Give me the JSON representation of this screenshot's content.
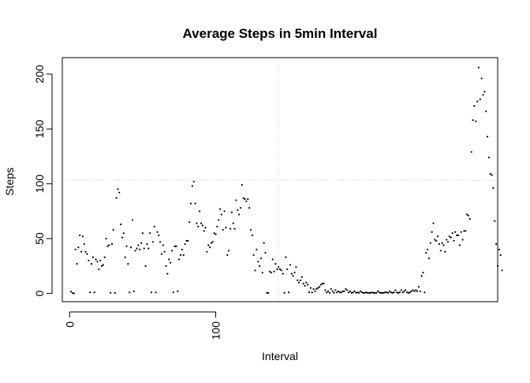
{
  "chart_data": {
    "type": "scatter",
    "title": "Average Steps in 5min Interval",
    "xlabel": "Interval",
    "ylabel": "Steps",
    "xlim": [
      -5,
      293
    ],
    "ylim": [
      -7.5,
      215
    ],
    "x_ticks": [
      0,
      100
    ],
    "x_tick_labels": [
      "0",
      "100"
    ],
    "y_ticks": [
      0,
      50,
      100,
      150,
      200
    ],
    "y_tick_labels": [
      "0",
      "50",
      "100",
      "150",
      "200"
    ],
    "grid": "dotted reference lines at x=143 and y=103",
    "ref_lines": {
      "x": 143,
      "y": 103
    },
    "point_color": "#000000",
    "points": [
      [
        1,
        1.7
      ],
      [
        2,
        0.3
      ],
      [
        3,
        0.1
      ],
      [
        4,
        40
      ],
      [
        5,
        27
      ],
      [
        6,
        42
      ],
      [
        7,
        53
      ],
      [
        8,
        38
      ],
      [
        9,
        52
      ],
      [
        10,
        45
      ],
      [
        11,
        38
      ],
      [
        12,
        36
      ],
      [
        13,
        30
      ],
      [
        14,
        1
      ],
      [
        15,
        27
      ],
      [
        16,
        33
      ],
      [
        17,
        1
      ],
      [
        18,
        31
      ],
      [
        19,
        29
      ],
      [
        20,
        22
      ],
      [
        21,
        30
      ],
      [
        22,
        25
      ],
      [
        23,
        26
      ],
      [
        24,
        33
      ],
      [
        25,
        50
      ],
      [
        26,
        43
      ],
      [
        27,
        44
      ],
      [
        28,
        0.5
      ],
      [
        29,
        45
      ],
      [
        30,
        58
      ],
      [
        31,
        0.5
      ],
      [
        32,
        87
      ],
      [
        33,
        95
      ],
      [
        34,
        92
      ],
      [
        35,
        63
      ],
      [
        36,
        51
      ],
      [
        37,
        55
      ],
      [
        38,
        33
      ],
      [
        39,
        43
      ],
      [
        40,
        27
      ],
      [
        41,
        1
      ],
      [
        42,
        42
      ],
      [
        43,
        67
      ],
      [
        44,
        2
      ],
      [
        45,
        39
      ],
      [
        46,
        41
      ],
      [
        47,
        44
      ],
      [
        48,
        40
      ],
      [
        49,
        46
      ],
      [
        50,
        55
      ],
      [
        51,
        41
      ],
      [
        52,
        25
      ],
      [
        53,
        45
      ],
      [
        54,
        41
      ],
      [
        55,
        55
      ],
      [
        56,
        1
      ],
      [
        57,
        47
      ],
      [
        58,
        61
      ],
      [
        59,
        1
      ],
      [
        60,
        56
      ],
      [
        61,
        53
      ],
      [
        62,
        47
      ],
      [
        63,
        36
      ],
      [
        64,
        44
      ],
      [
        65,
        38
      ],
      [
        66,
        25
      ],
      [
        67,
        18
      ],
      [
        68,
        31
      ],
      [
        69,
        28
      ],
      [
        70,
        39
      ],
      [
        71,
        1
      ],
      [
        72,
        43
      ],
      [
        73,
        43
      ],
      [
        74,
        2
      ],
      [
        75,
        31
      ],
      [
        76,
        35
      ],
      [
        77,
        40
      ],
      [
        78,
        35
      ],
      [
        79,
        45
      ],
      [
        80,
        48
      ],
      [
        81,
        48
      ],
      [
        82,
        65
      ],
      [
        83,
        82
      ],
      [
        84,
        98
      ],
      [
        85,
        102
      ],
      [
        86,
        82
      ],
      [
        87,
        64
      ],
      [
        88,
        61
      ],
      [
        89,
        75
      ],
      [
        90,
        64
      ],
      [
        91,
        62
      ],
      [
        92,
        57
      ],
      [
        93,
        60
      ],
      [
        94,
        38
      ],
      [
        95,
        44
      ],
      [
        96,
        42
      ],
      [
        97,
        46
      ],
      [
        98,
        47
      ],
      [
        99,
        55
      ],
      [
        100,
        54
      ],
      [
        101,
        61
      ],
      [
        102,
        67
      ],
      [
        103,
        77
      ],
      [
        104,
        72
      ],
      [
        105,
        58
      ],
      [
        106,
        75
      ],
      [
        107,
        60
      ],
      [
        108,
        35
      ],
      [
        109,
        39
      ],
      [
        110,
        59
      ],
      [
        111,
        74
      ],
      [
        112,
        64
      ],
      [
        113,
        59
      ],
      [
        114,
        85
      ],
      [
        115,
        76
      ],
      [
        116,
        72
      ],
      [
        117,
        78
      ],
      [
        118,
        99
      ],
      [
        119,
        87
      ],
      [
        120,
        86
      ],
      [
        121,
        84
      ],
      [
        122,
        86
      ],
      [
        123,
        78
      ],
      [
        124,
        58
      ],
      [
        125,
        53
      ],
      [
        126,
        35
      ],
      [
        127,
        21
      ],
      [
        128,
        40
      ],
      [
        129,
        29
      ],
      [
        130,
        25
      ],
      [
        131,
        32
      ],
      [
        132,
        19
      ],
      [
        133,
        46
      ],
      [
        134,
        37
      ],
      [
        135,
        0.5
      ],
      [
        136,
        0.5
      ],
      [
        137,
        20
      ],
      [
        138,
        19
      ],
      [
        139,
        31
      ],
      [
        140,
        20
      ],
      [
        141,
        27
      ],
      [
        142,
        22
      ],
      [
        143,
        24
      ],
      [
        144,
        22
      ],
      [
        145,
        21
      ],
      [
        146,
        18
      ],
      [
        147,
        0.5
      ],
      [
        148,
        33
      ],
      [
        149,
        22
      ],
      [
        150,
        1
      ],
      [
        151,
        26
      ],
      [
        152,
        18
      ],
      [
        153,
        16
      ],
      [
        154,
        19
      ],
      [
        155,
        24
      ],
      [
        156,
        12
      ],
      [
        157,
        10
      ],
      [
        158,
        12
      ],
      [
        159,
        15
      ],
      [
        160,
        9
      ],
      [
        161,
        7
      ],
      [
        162,
        10
      ],
      [
        163,
        8
      ],
      [
        164,
        1
      ],
      [
        165,
        5
      ],
      [
        166,
        1
      ],
      [
        167,
        4
      ],
      [
        168,
        2
      ],
      [
        169,
        4
      ],
      [
        170,
        5
      ],
      [
        171,
        6
      ],
      [
        172,
        8
      ],
      [
        173,
        9
      ],
      [
        174,
        9
      ],
      [
        175,
        3
      ],
      [
        176,
        1
      ],
      [
        177,
        2
      ],
      [
        178,
        0.5
      ],
      [
        179,
        4
      ],
      [
        180,
        2
      ],
      [
        181,
        0.5
      ],
      [
        182,
        3
      ],
      [
        183,
        1
      ],
      [
        184,
        2
      ],
      [
        185,
        1
      ],
      [
        186,
        1
      ],
      [
        187,
        2
      ],
      [
        188,
        2
      ],
      [
        189,
        4
      ],
      [
        190,
        3
      ],
      [
        191,
        1
      ],
      [
        192,
        2
      ],
      [
        193,
        0.5
      ],
      [
        194,
        1
      ],
      [
        195,
        2
      ],
      [
        196,
        0.5
      ],
      [
        197,
        1
      ],
      [
        198,
        0.5
      ],
      [
        199,
        2
      ],
      [
        200,
        1
      ],
      [
        201,
        0.5
      ],
      [
        202,
        0.5
      ],
      [
        203,
        1
      ],
      [
        204,
        0.5
      ],
      [
        205,
        0.5
      ],
      [
        206,
        0.5
      ],
      [
        207,
        1
      ],
      [
        208,
        0.5
      ],
      [
        209,
        0.5
      ],
      [
        210,
        0.5
      ],
      [
        211,
        2
      ],
      [
        212,
        1
      ],
      [
        213,
        0.5
      ],
      [
        214,
        0.5
      ],
      [
        215,
        0.5
      ],
      [
        216,
        1
      ],
      [
        217,
        1
      ],
      [
        218,
        0.5
      ],
      [
        219,
        2
      ],
      [
        220,
        1
      ],
      [
        221,
        0.5
      ],
      [
        222,
        1
      ],
      [
        223,
        3
      ],
      [
        224,
        1
      ],
      [
        225,
        0.5
      ],
      [
        226,
        1
      ],
      [
        227,
        3
      ],
      [
        228,
        1
      ],
      [
        229,
        2
      ],
      [
        230,
        3
      ],
      [
        231,
        1
      ],
      [
        232,
        0.5
      ],
      [
        233,
        1
      ],
      [
        234,
        2
      ],
      [
        235,
        3
      ],
      [
        236,
        2
      ],
      [
        237,
        3
      ],
      [
        238,
        2
      ],
      [
        239,
        6
      ],
      [
        240,
        2
      ],
      [
        241,
        16
      ],
      [
        242,
        19
      ],
      [
        243,
        1
      ],
      [
        244,
        37
      ],
      [
        245,
        40
      ],
      [
        246,
        32
      ],
      [
        247,
        46
      ],
      [
        248,
        56
      ],
      [
        249,
        64
      ],
      [
        250,
        49
      ],
      [
        251,
        48
      ],
      [
        252,
        52
      ],
      [
        253,
        45
      ],
      [
        254,
        39
      ],
      [
        255,
        46
      ],
      [
        256,
        44
      ],
      [
        257,
        38
      ],
      [
        258,
        49
      ],
      [
        259,
        47
      ],
      [
        260,
        52
      ],
      [
        261,
        51
      ],
      [
        262,
        55
      ],
      [
        263,
        48
      ],
      [
        264,
        56
      ],
      [
        265,
        53
      ],
      [
        266,
        53
      ],
      [
        267,
        44
      ],
      [
        268,
        56
      ],
      [
        269,
        49
      ],
      [
        270,
        57
      ],
      [
        271,
        57
      ],
      [
        272,
        72
      ],
      [
        273,
        71
      ],
      [
        274,
        68
      ],
      [
        275,
        129
      ],
      [
        276,
        158
      ],
      [
        277,
        171
      ],
      [
        278,
        157
      ],
      [
        279,
        175
      ],
      [
        280,
        206
      ],
      [
        281,
        177
      ],
      [
        282,
        196
      ],
      [
        283,
        181
      ],
      [
        284,
        184
      ],
      [
        285,
        166
      ],
      [
        286,
        143
      ],
      [
        287,
        124
      ],
      [
        288,
        109
      ],
      [
        289,
        108
      ],
      [
        290,
        96
      ],
      [
        291,
        66
      ],
      [
        292,
        45
      ],
      [
        293,
        25
      ],
      [
        294,
        40
      ],
      [
        295,
        35
      ],
      [
        296,
        21
      ]
    ]
  }
}
